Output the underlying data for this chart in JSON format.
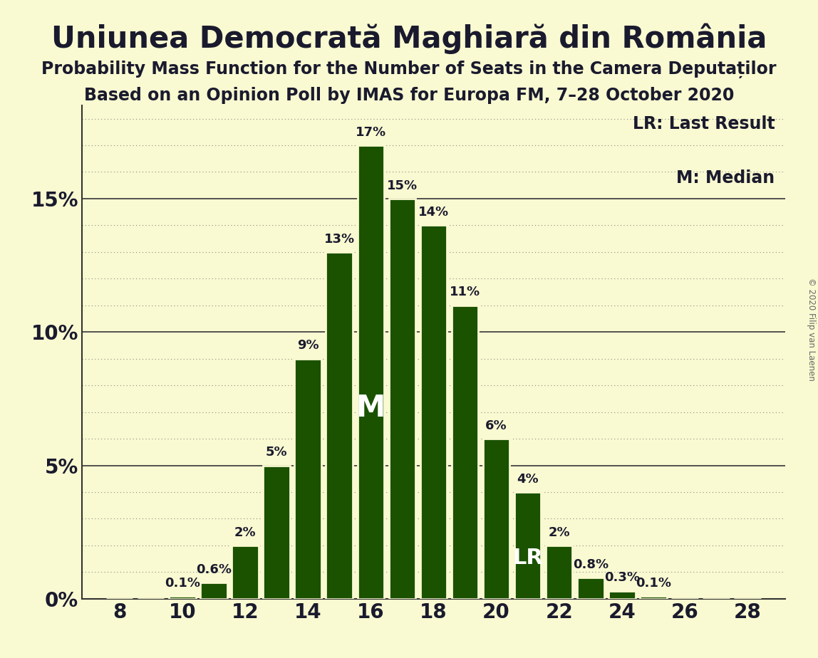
{
  "title": "Uniunea Democrată Maghiară din România",
  "subtitle1": "Probability Mass Function for the Number of Seats in the Camera Deputaților",
  "subtitle2": "Based on an Opinion Poll by IMAS for Europa FM, 7–28 October 2020",
  "copyright": "© 2020 Filip van Laenen",
  "background_color": "#FAFAD2",
  "bar_color": "#1A5200",
  "bar_edge_color": "#FAFAD2",
  "title_color": "#1a1a2e",
  "legend_text1": "LR: Last Result",
  "legend_text2": "M: Median",
  "seats": [
    8,
    9,
    10,
    11,
    12,
    13,
    14,
    15,
    16,
    17,
    18,
    19,
    20,
    21,
    22,
    23,
    24,
    25,
    26,
    27,
    28
  ],
  "probs": [
    0.0,
    0.0,
    0.001,
    0.006,
    0.02,
    0.05,
    0.09,
    0.13,
    0.17,
    0.15,
    0.14,
    0.11,
    0.06,
    0.04,
    0.02,
    0.008,
    0.003,
    0.001,
    0.0,
    0.0,
    0.0
  ],
  "label_probs": [
    "0%",
    "0%",
    "0.1%",
    "0.6%",
    "2%",
    "5%",
    "9%",
    "13%",
    "17%",
    "15%",
    "14%",
    "11%",
    "6%",
    "4%",
    "2%",
    "0.8%",
    "0.3%",
    "0.1%",
    "0%",
    "0%",
    "0%"
  ],
  "show_label": [
    false,
    false,
    true,
    true,
    true,
    true,
    true,
    true,
    true,
    true,
    true,
    true,
    true,
    true,
    true,
    true,
    true,
    true,
    false,
    false,
    false
  ],
  "median_seat": 16,
  "last_result_seat": 21,
  "ylim": [
    0,
    0.185
  ],
  "yticks": [
    0.0,
    0.05,
    0.1,
    0.15
  ],
  "ytick_labels": [
    "0%",
    "5%",
    "10%",
    "15%"
  ],
  "grid_color": "#888888",
  "solid_line_color": "#444444",
  "title_fontsize": 30,
  "subtitle_fontsize": 17,
  "tick_fontsize": 20,
  "label_fontsize": 13,
  "legend_fontsize": 17,
  "n_intermediate_gridlines": 4
}
